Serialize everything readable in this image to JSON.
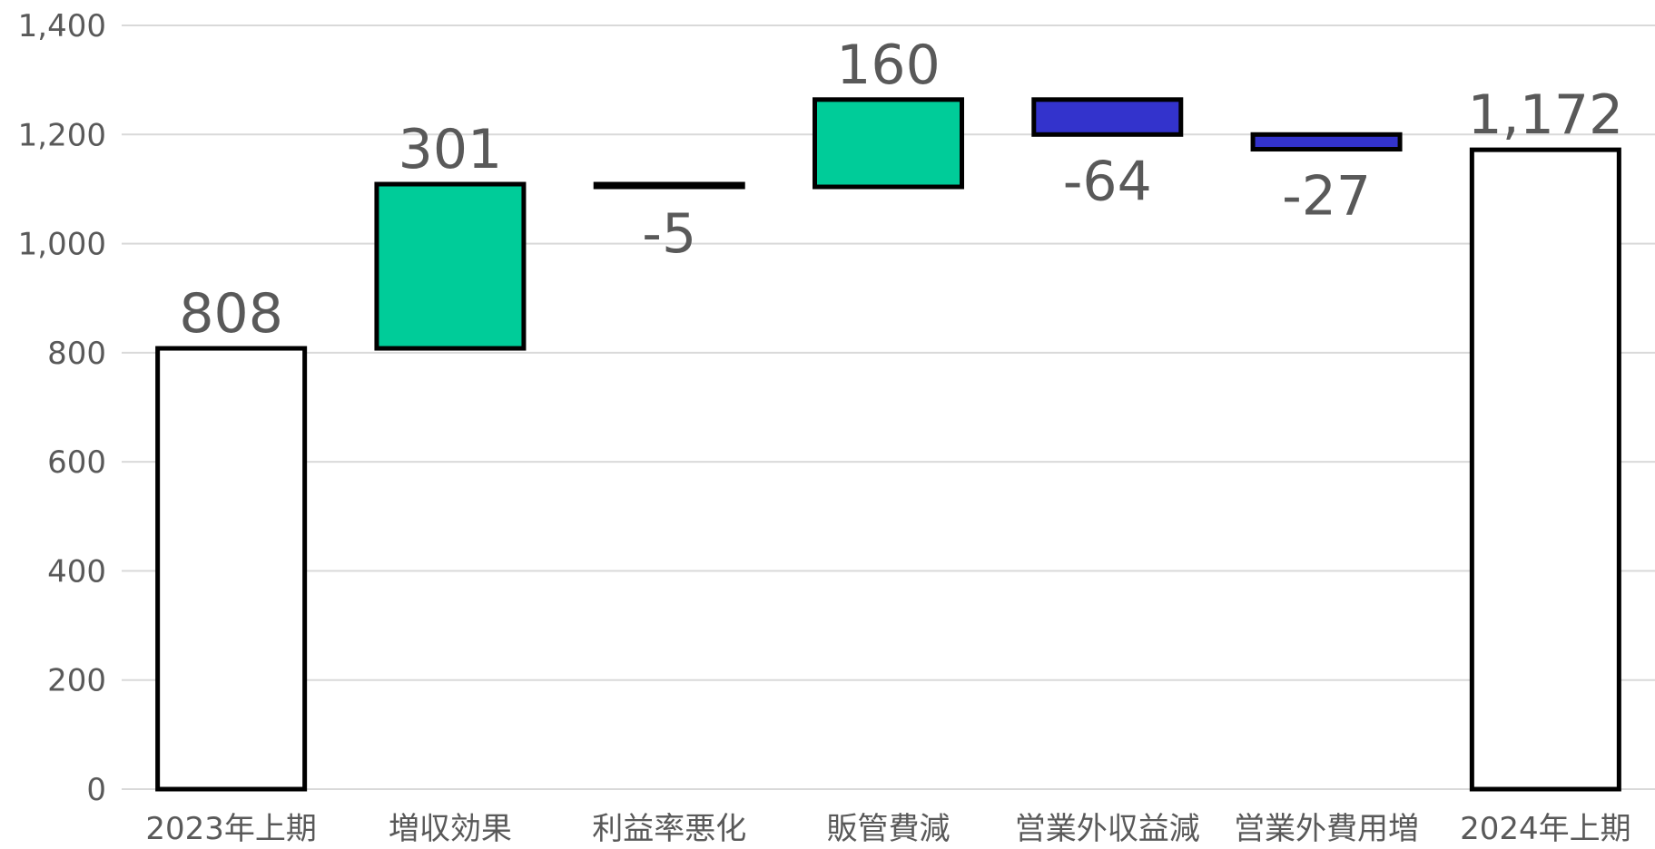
{
  "chart_data": {
    "type": "bar",
    "subtype": "waterfall",
    "title": "",
    "xlabel": "",
    "ylabel": "",
    "ylim": [
      0,
      1400
    ],
    "y_ticks": [
      0,
      200,
      400,
      600,
      800,
      1000,
      1200,
      1400
    ],
    "y_tick_labels": [
      "0",
      "200",
      "400",
      "600",
      "800",
      "1,000",
      "1,200",
      "1,400"
    ],
    "grid": true,
    "legend": "none",
    "categories": [
      "2023年上期",
      "増収効果",
      "利益率悪化",
      "販管費減",
      "営業外収益減",
      "営業外費用増",
      "2024年上期"
    ],
    "bars": [
      {
        "category": "2023年上期",
        "kind": "total",
        "value": 808,
        "label": "808",
        "start": 0,
        "end": 808
      },
      {
        "category": "増収効果",
        "kind": "increase",
        "value": 301,
        "label": "301",
        "start": 808,
        "end": 1109
      },
      {
        "category": "利益率悪化",
        "kind": "decrease",
        "value": -5,
        "label": "-5",
        "start": 1109,
        "end": 1104
      },
      {
        "category": "販管費減",
        "kind": "increase",
        "value": 160,
        "label": "160",
        "start": 1104,
        "end": 1264
      },
      {
        "category": "営業外収益減",
        "kind": "decrease",
        "value": -64,
        "label": "-64",
        "start": 1264,
        "end": 1200
      },
      {
        "category": "営業外費用増",
        "kind": "decrease",
        "value": -27,
        "label": "-27",
        "start": 1200,
        "end": 1173
      },
      {
        "category": "2024年上期",
        "kind": "total",
        "value": 1172,
        "label": "1,172",
        "start": 0,
        "end": 1172
      }
    ],
    "colors": {
      "total": "#ffffff",
      "increase": "#00cc99",
      "decrease": "#3333cc",
      "outline": "#000000",
      "grid": "#d9d9d9",
      "text": "#595959"
    }
  }
}
